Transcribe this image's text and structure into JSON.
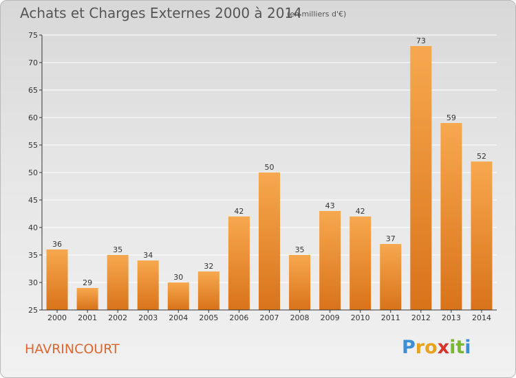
{
  "title": "Achats et Charges Externes 2000 à 2014",
  "subtitle": "(en milliers d'€)",
  "commune": "HAVRINCOURT",
  "logo": {
    "letters": [
      {
        "char": "P",
        "color": "#3a8fd6"
      },
      {
        "char": "r",
        "color": "#e8a21c"
      },
      {
        "char": "o",
        "color": "#e8a21c"
      },
      {
        "char": "x",
        "color": "#d9342b"
      },
      {
        "char": "i",
        "color": "#7ab82e"
      },
      {
        "char": "t",
        "color": "#7ab82e"
      },
      {
        "char": "i",
        "color": "#3a8fd6"
      }
    ]
  },
  "colors": {
    "bar_light": "#f7a84e",
    "bar_dark": "#d9731a",
    "grid": "#ffffff",
    "axis": "#333333"
  },
  "chart_data": {
    "type": "bar",
    "title": "Achats et Charges Externes 2000 à 2014",
    "subtitle": "(en milliers d'€)",
    "categories": [
      "2000",
      "2001",
      "2002",
      "2003",
      "2004",
      "2005",
      "2006",
      "2007",
      "2008",
      "2009",
      "2010",
      "2011",
      "2012",
      "2013",
      "2014"
    ],
    "values": [
      36,
      29,
      35,
      34,
      30,
      32,
      42,
      50,
      35,
      43,
      42,
      37,
      73,
      59,
      52
    ],
    "data_labels": [
      "36",
      "29",
      "35",
      "34",
      "30",
      "32",
      "42",
      "50",
      "35",
      "43",
      "42",
      "37",
      "73",
      "59",
      "52"
    ],
    "ylim": [
      25,
      75
    ],
    "yticks": [
      25,
      30,
      35,
      40,
      45,
      50,
      55,
      60,
      65,
      70,
      75
    ],
    "grid": true,
    "legend": "none"
  }
}
